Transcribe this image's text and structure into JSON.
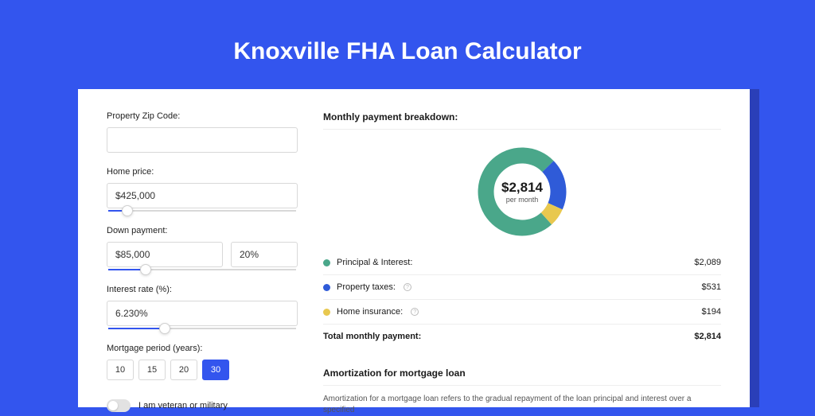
{
  "page_title": "Knoxville FHA Loan Calculator",
  "colors": {
    "background": "#3355ee",
    "shadow": "#2a3fb8",
    "card": "#ffffff",
    "accent": "#3355ee",
    "border": "#d8d8d8",
    "text": "#1a1a1a"
  },
  "form": {
    "zip": {
      "label": "Property Zip Code:",
      "value": ""
    },
    "home_price": {
      "label": "Home price:",
      "value": "$425,000",
      "slider_pct": 10
    },
    "down_payment": {
      "label": "Down payment:",
      "value": "$85,000",
      "pct_value": "20%",
      "slider_pct": 20
    },
    "interest_rate": {
      "label": "Interest rate (%):",
      "value": "6.230%",
      "slider_pct": 30
    },
    "mortgage_period": {
      "label": "Mortgage period (years):",
      "options": [
        "10",
        "15",
        "20",
        "30"
      ],
      "selected": "30"
    },
    "veteran": {
      "label": "I am veteran or military",
      "checked": false
    }
  },
  "breakdown": {
    "title": "Monthly payment breakdown:",
    "amount": "$2,814",
    "sub": "per month",
    "donut": {
      "segments": [
        {
          "name": "principal_interest",
          "value": 2089,
          "pct": 74.2,
          "color": "#4aa78a"
        },
        {
          "name": "property_taxes",
          "value": 531,
          "pct": 18.9,
          "color": "#2f5bd8"
        },
        {
          "name": "home_insurance",
          "value": 194,
          "pct": 6.9,
          "color": "#e8c84f"
        }
      ],
      "thickness_pct": 28,
      "rotation_deg": -90
    },
    "rows": [
      {
        "label": "Principal & Interest:",
        "value": "$2,089",
        "color": "#4aa78a",
        "info": false
      },
      {
        "label": "Property taxes:",
        "value": "$531",
        "color": "#2f5bd8",
        "info": true
      },
      {
        "label": "Home insurance:",
        "value": "$194",
        "color": "#e8c84f",
        "info": true
      }
    ],
    "total": {
      "label": "Total monthly payment:",
      "value": "$2,814"
    }
  },
  "amortization": {
    "title": "Amortization for mortgage loan",
    "text": "Amortization for a mortgage loan refers to the gradual repayment of the loan principal and interest over a specified"
  }
}
